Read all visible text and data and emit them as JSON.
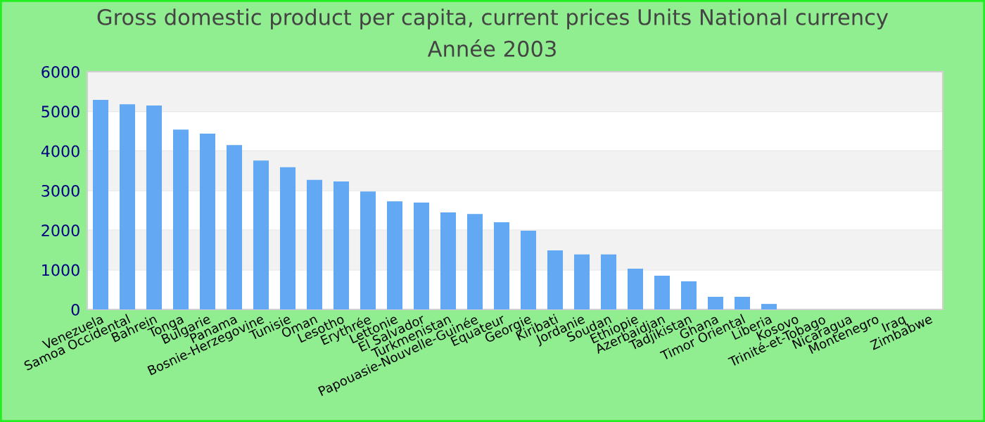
{
  "chart_data": {
    "type": "bar",
    "title": "Gross domestic product per capita, current prices Units National currency",
    "subtitle": "Année 2003",
    "categories": [
      "Venezuela",
      "Samoa Occidental",
      "Bahrein",
      "Tonga",
      "Bulgarie",
      "Panama",
      "Bosnie-Herzegovine",
      "Tunisie",
      "Oman",
      "Lesotho",
      "Erythrée",
      "Lettonie",
      "El Salvador",
      "Turkmenistan",
      "Papouasie-Nouvelle-Guinée",
      "Equateur",
      "Georgie",
      "Kiribati",
      "Jordanie",
      "Soudan",
      "Ethiopie",
      "Azerbaidjan",
      "Tadjikistan",
      "Ghana",
      "Timor Oriental",
      "Liberia",
      "Kosovo",
      "Trinité-et-Tobago",
      "Nicaragua",
      "Montenegro",
      "Iraq",
      "Zimbabwe"
    ],
    "values": [
      5290,
      5180,
      5150,
      4540,
      4440,
      4150,
      3760,
      3590,
      3270,
      3230,
      2980,
      2730,
      2700,
      2450,
      2410,
      2200,
      1990,
      1490,
      1390,
      1390,
      1030,
      850,
      710,
      320,
      320,
      140,
      null,
      null,
      null,
      null,
      null,
      null
    ],
    "color": "#62a8f2",
    "ylim": [
      0,
      6000
    ],
    "yticks": [
      0,
      1000,
      2000,
      3000,
      4000,
      5000,
      6000
    ],
    "grid": "y"
  }
}
